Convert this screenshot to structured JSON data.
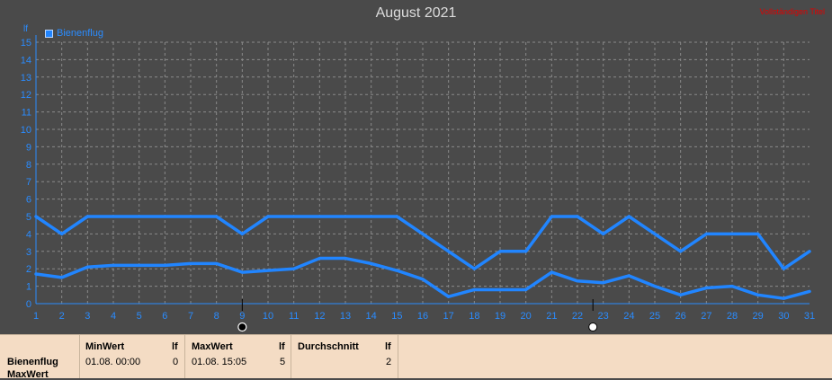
{
  "chart_title": "August 2021",
  "corner_note": "Vollständigen Titel",
  "legend": {
    "series_name": "Bienenflug"
  },
  "y_unit": "lf",
  "colors": {
    "series": "#2185ff",
    "background": "#4a4a4a",
    "grid": "#8a8a8a",
    "axis_text": "#2a8cff"
  },
  "chart_data": {
    "type": "line",
    "title": "August 2021",
    "xlabel": "",
    "ylabel": "lf",
    "x": [
      1,
      2,
      3,
      4,
      5,
      6,
      7,
      8,
      9,
      10,
      11,
      12,
      13,
      14,
      15,
      16,
      17,
      18,
      19,
      20,
      21,
      22,
      23,
      24,
      25,
      26,
      27,
      28,
      29,
      30,
      31
    ],
    "xlim": [
      1,
      31
    ],
    "ylim": [
      0,
      15
    ],
    "y_ticks": [
      0,
      1,
      2,
      3,
      4,
      5,
      6,
      7,
      8,
      9,
      10,
      11,
      12,
      13,
      14,
      15
    ],
    "grid": true,
    "legend_position": "top-left",
    "series": [
      {
        "name": "Bienenflug",
        "role": "max",
        "values": [
          5,
          4,
          5,
          5,
          5,
          5,
          5,
          5,
          4,
          5,
          5,
          5,
          5,
          5,
          5,
          4,
          3,
          2,
          3,
          3,
          5,
          5,
          4,
          5,
          4,
          3,
          4,
          4,
          4,
          2,
          3
        ]
      },
      {
        "role": "average",
        "values": [
          1.7,
          1.5,
          2.1,
          2.2,
          2.2,
          2.2,
          2.3,
          2.3,
          1.8,
          1.9,
          2.0,
          2.6,
          2.6,
          2.3,
          1.9,
          1.4,
          0.4,
          0.8,
          0.8,
          0.8,
          1.8,
          1.3,
          1.2,
          1.6,
          1.0,
          0.5,
          0.9,
          1.0,
          0.5,
          0.3,
          0.7
        ]
      }
    ],
    "moon_markers": [
      {
        "x": 9,
        "phase": "new-moon"
      },
      {
        "x": 22.6,
        "phase": "full-moon"
      }
    ]
  },
  "stats": {
    "row_label": "Bienenflug",
    "row_label_2": "MaxWert",
    "min": {
      "header": "MinWert",
      "unit": "lf",
      "time": "01.08.  00:00",
      "value": "0"
    },
    "max": {
      "header": "MaxWert",
      "unit": "lf",
      "time": "01.08.  15:05",
      "value": "5"
    },
    "avg": {
      "header": "Durchschnitt",
      "unit": "lf",
      "value": "2"
    }
  }
}
